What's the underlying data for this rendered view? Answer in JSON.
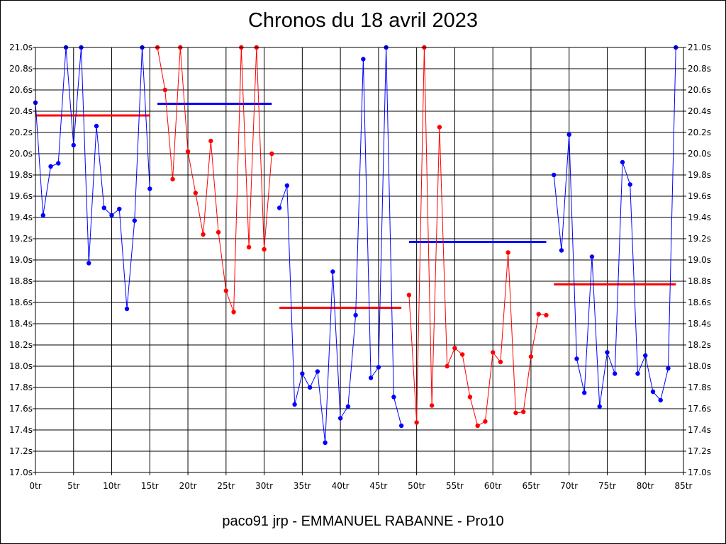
{
  "chart_data": {
    "type": "line",
    "title": "Chronos du 18 avril 2023",
    "subtitle": "paco91 jrp - EMMANUEL RABANNE - Pro10",
    "xlim": [
      0,
      85
    ],
    "ylim": [
      17.0,
      21.0
    ],
    "x_ticks": [
      0,
      5,
      10,
      15,
      20,
      25,
      30,
      35,
      40,
      45,
      50,
      55,
      60,
      65,
      70,
      75,
      80,
      85
    ],
    "x_tick_labels": [
      "0tr",
      "5tr",
      "10tr",
      "15tr",
      "20tr",
      "25tr",
      "30tr",
      "35tr",
      "40tr",
      "45tr",
      "50tr",
      "55tr",
      "60tr",
      "65tr",
      "70tr",
      "75tr",
      "80tr",
      "85tr"
    ],
    "y_ticks": [
      17.0,
      17.2,
      17.4,
      17.6,
      17.8,
      18.0,
      18.2,
      18.4,
      18.6,
      18.8,
      19.0,
      19.2,
      19.4,
      19.6,
      19.8,
      20.0,
      20.2,
      20.4,
      20.6,
      20.8,
      21.0
    ],
    "y_tick_labels": [
      "17.0s",
      "17.2s",
      "17.4s",
      "17.6s",
      "17.8s",
      "18.0s",
      "18.2s",
      "18.4s",
      "18.6s",
      "18.8s",
      "19.0s",
      "19.2s",
      "19.4s",
      "19.6s",
      "19.8s",
      "20.0s",
      "20.2s",
      "20.4s",
      "20.6s",
      "20.8s",
      "21.0s"
    ],
    "grid": true,
    "colors": {
      "blue": "#0000ff",
      "red": "#ff0000"
    },
    "series": [
      {
        "color": "#0000ff",
        "x": [
          0,
          1,
          2,
          3,
          4,
          5,
          6,
          7,
          8,
          9,
          10,
          11,
          12,
          13,
          14,
          15
        ],
        "y": [
          20.48,
          19.42,
          19.88,
          19.91,
          21.0,
          20.08,
          21.0,
          18.97,
          20.26,
          19.49,
          19.42,
          19.48,
          18.54,
          19.37,
          21.0,
          19.67
        ]
      },
      {
        "color": "#ff0000",
        "x": [
          16,
          17,
          18,
          19,
          20,
          21,
          22,
          23,
          24,
          25,
          26,
          27,
          28,
          29,
          30,
          31
        ],
        "y": [
          21.0,
          20.6,
          19.76,
          21.0,
          20.02,
          19.63,
          19.24,
          20.12,
          19.26,
          18.71,
          18.51,
          21.0,
          19.12,
          21.0,
          19.1,
          20.0
        ]
      },
      {
        "color": "#0000ff",
        "x": [
          32,
          33,
          34,
          35,
          36,
          37,
          38,
          39,
          40,
          41,
          42,
          43,
          44,
          45,
          46,
          47,
          48
        ],
        "y": [
          19.49,
          19.7,
          17.64,
          17.93,
          17.8,
          17.95,
          17.28,
          18.89,
          17.51,
          17.62,
          18.48,
          20.89,
          17.89,
          17.99,
          21.0,
          17.71,
          17.44
        ]
      },
      {
        "color": "#ff0000",
        "x": [
          49,
          50,
          51,
          52,
          53,
          54,
          55,
          56,
          57,
          58,
          59,
          60,
          61,
          62,
          63,
          64,
          65,
          66,
          67
        ],
        "y": [
          18.67,
          17.47,
          21.0,
          17.63,
          20.25,
          18.0,
          18.17,
          18.11,
          17.71,
          17.44,
          17.48,
          18.13,
          18.04,
          19.07,
          17.56,
          17.57,
          18.09,
          18.49,
          18.48
        ]
      },
      {
        "color": "#0000ff",
        "x": [
          68,
          69,
          70,
          71,
          72,
          73,
          74,
          75,
          76,
          77,
          78,
          79,
          80,
          81,
          82,
          83,
          84
        ],
        "y": [
          19.8,
          19.09,
          20.18,
          18.07,
          17.75,
          19.03,
          17.62,
          18.13,
          17.93,
          19.92,
          19.71,
          17.93,
          18.1,
          17.76,
          17.68,
          17.98,
          21.0
        ]
      }
    ],
    "averages": [
      {
        "color": "#ff0000",
        "x0": 0,
        "x1": 15,
        "y": 20.36
      },
      {
        "color": "#0000ff",
        "x0": 16,
        "x1": 31,
        "y": 20.47
      },
      {
        "color": "#ff0000",
        "x0": 32,
        "x1": 48,
        "y": 18.55
      },
      {
        "color": "#0000ff",
        "x0": 49,
        "x1": 67,
        "y": 19.17
      },
      {
        "color": "#ff0000",
        "x0": 68,
        "x1": 84,
        "y": 18.77
      }
    ]
  }
}
